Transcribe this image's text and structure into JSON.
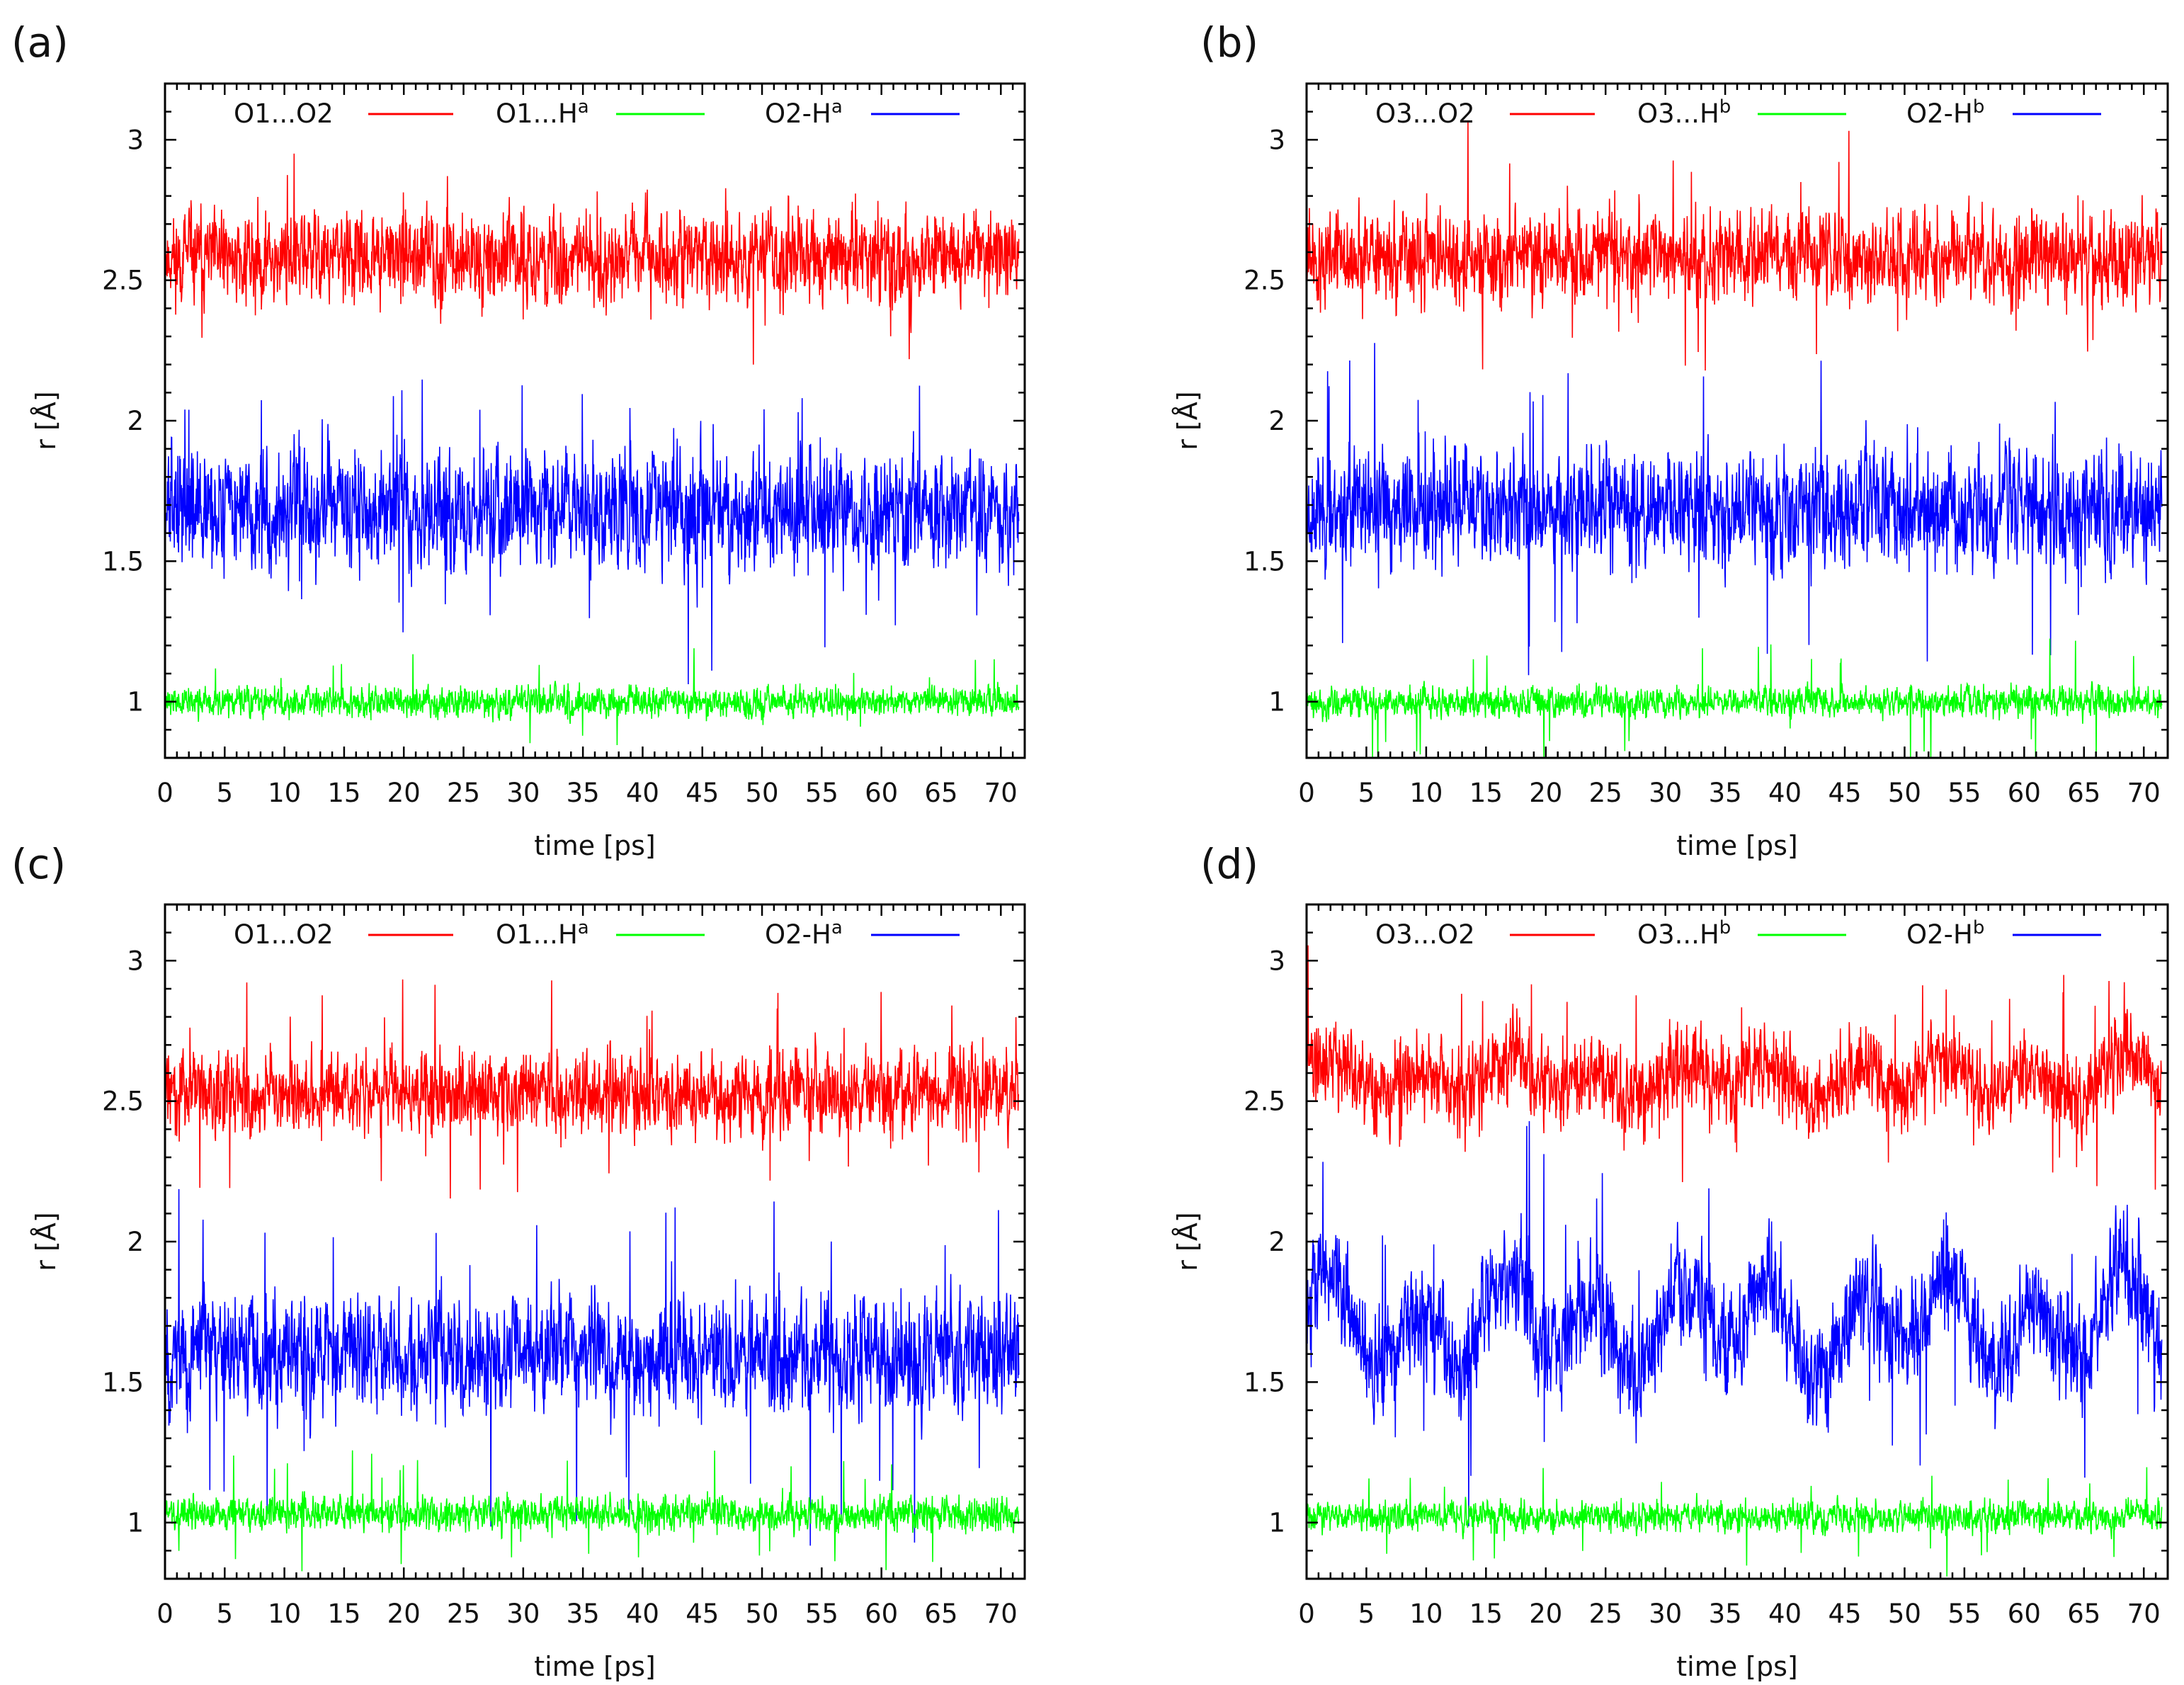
{
  "figure": {
    "description_free": true
  },
  "chart_data": [
    {
      "type": "line",
      "panel_label": "(a)",
      "title": "",
      "xlabel": "time [ps]",
      "ylabel": "r [Å]",
      "xlim": [
        0,
        72
      ],
      "ylim": [
        0.8,
        3.2
      ],
      "xticks": [
        0,
        5,
        10,
        15,
        20,
        25,
        30,
        35,
        40,
        45,
        50,
        55,
        60,
        65,
        70
      ],
      "yticks": [
        1,
        1.5,
        2,
        2.5,
        3
      ],
      "ytick_labels": [
        "1",
        "1.5",
        "2",
        "2.5",
        "3"
      ],
      "grid": false,
      "legend_position": "top",
      "series": [
        {
          "name": "O1...O2",
          "base": "O1...O2",
          "sup": "",
          "color": "#ff0000",
          "mean": 2.58,
          "amplitude": 0.13,
          "spike_amp": 0.3,
          "seed": 11
        },
        {
          "name": "O1...Hᵃ",
          "base": "O1...H",
          "sup": "a",
          "color": "#00ff00",
          "mean": 1.0,
          "amplitude": 0.045,
          "spike_amp": 0.17,
          "seed": 12
        },
        {
          "name": "O2-Hᵃ",
          "base": "O2-H",
          "sup": "a",
          "color": "#0000ff",
          "mean": 1.68,
          "amplitude": 0.17,
          "spike_amp": 0.48,
          "seed": 13
        }
      ]
    },
    {
      "type": "line",
      "panel_label": "(b)",
      "title": "",
      "xlabel": "time [ps]",
      "ylabel": "r [Å]",
      "xlim": [
        0,
        72
      ],
      "ylim": [
        0.8,
        3.2
      ],
      "xticks": [
        0,
        5,
        10,
        15,
        20,
        25,
        30,
        35,
        40,
        45,
        50,
        55,
        60,
        65,
        70
      ],
      "yticks": [
        1,
        1.5,
        2,
        2.5,
        3
      ],
      "ytick_labels": [
        "1",
        "1.5",
        "2",
        "2.5",
        "3"
      ],
      "grid": false,
      "legend_position": "top",
      "series": [
        {
          "name": "O3...O2",
          "base": "O3...O2",
          "sup": "",
          "color": "#ff0000",
          "mean": 2.58,
          "amplitude": 0.13,
          "spike_amp": 0.33,
          "seed": 21
        },
        {
          "name": "O3...Hᵇ",
          "base": "O3...H",
          "sup": "b",
          "color": "#00ff00",
          "mean": 1.0,
          "amplitude": 0.045,
          "spike_amp": 0.24,
          "seed": 22
        },
        {
          "name": "O2-Hᵇ",
          "base": "O2-H",
          "sup": "b",
          "color": "#0000ff",
          "mean": 1.69,
          "amplitude": 0.17,
          "spike_amp": 0.5,
          "seed": 23
        }
      ]
    },
    {
      "type": "line",
      "panel_label": "(c)",
      "title": "",
      "xlabel": "time [ps]",
      "ylabel": "r [Å]",
      "xlim": [
        0,
        72
      ],
      "ylim": [
        0.8,
        3.2
      ],
      "xticks": [
        0,
        5,
        10,
        15,
        20,
        25,
        30,
        35,
        40,
        45,
        50,
        55,
        60,
        65,
        70
      ],
      "yticks": [
        1,
        1.5,
        2,
        2.5,
        3
      ],
      "ytick_labels": [
        "1",
        "1.5",
        "2",
        "2.5",
        "3"
      ],
      "grid": false,
      "legend_position": "top",
      "series": [
        {
          "name": "O1...O2",
          "base": "O1...O2",
          "sup": "",
          "color": "#ff0000",
          "mean": 2.53,
          "amplitude": 0.12,
          "spike_amp": 0.33,
          "seed": 31
        },
        {
          "name": "O1...Hᵃ",
          "base": "O1...H",
          "sup": "a",
          "color": "#00ff00",
          "mean": 1.03,
          "amplitude": 0.05,
          "spike_amp": 0.2,
          "seed": 32
        },
        {
          "name": "O2-Hᵃ",
          "base": "O2-H",
          "sup": "a",
          "color": "#0000ff",
          "mean": 1.6,
          "amplitude": 0.17,
          "spike_amp": 0.58,
          "seed": 33
        }
      ]
    },
    {
      "type": "line",
      "panel_label": "(d)",
      "title": "",
      "xlabel": "time [ps]",
      "ylabel": "r [Å]",
      "xlim": [
        0,
        72
      ],
      "ylim": [
        0.8,
        3.2
      ],
      "xticks": [
        0,
        5,
        10,
        15,
        20,
        25,
        30,
        35,
        40,
        45,
        50,
        55,
        60,
        65,
        70
      ],
      "yticks": [
        1,
        1.5,
        2,
        2.5,
        3
      ],
      "ytick_labels": [
        "1",
        "1.5",
        "2",
        "2.5",
        "3"
      ],
      "grid": false,
      "legend_position": "top",
      "series": [
        {
          "name": "O3...O2",
          "base": "O3...O2",
          "sup": "",
          "color": "#ff0000",
          "mean": 2.58,
          "amplitude": 0.12,
          "spike_amp": 0.33,
          "seed": 41,
          "drift": 0.05
        },
        {
          "name": "O3...Hᵇ",
          "base": "O3...H",
          "sup": "b",
          "color": "#00ff00",
          "mean": 1.02,
          "amplitude": 0.045,
          "spike_amp": 0.17,
          "seed": 42
        },
        {
          "name": "O2-Hᵇ",
          "base": "O2-H",
          "sup": "b",
          "color": "#0000ff",
          "mean": 1.7,
          "amplitude": 0.16,
          "spike_amp": 0.55,
          "seed": 43,
          "drift": 0.12
        }
      ]
    }
  ]
}
